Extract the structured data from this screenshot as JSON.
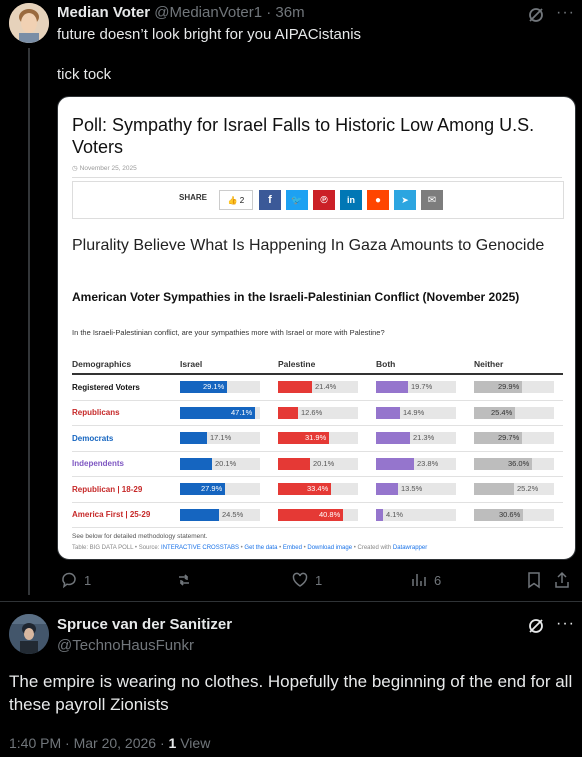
{
  "tweet1": {
    "author_name": "Median Voter",
    "handle": "@MedianVoter1",
    "time": "36m",
    "separator": "·",
    "text_line1": "future doesn’t look bright for you AIPACistanis",
    "text_line2": "tick tock",
    "replies": "1",
    "likes": "1",
    "views": "6"
  },
  "card": {
    "headline": "Poll: Sympathy for Israel Falls to Historic Low Among U.S. Voters",
    "date": "November 25, 2025",
    "share_label": "SHARE",
    "like_count": "2",
    "subheadline": "Plurality Believe What Is Happening In Gaza Amounts to Genocide",
    "chart_title": "American Voter Sympathies in the Israeli-Palestinian Conflict (November 2025)",
    "chart_question": "In the Israeli-Palestinian conflict, are your sympathies more with Israel or more with Palestine?",
    "methodology": "See below for detailed methodology statement.",
    "source_table": "Table: BIG DATA POLL",
    "source_sep": "• Source:",
    "source_link": "INTERACTIVE CROSSTABS",
    "get_data": "Get the data",
    "embed": "Embed",
    "download": "Download image",
    "created_with": "• Created with",
    "datawrapper": "Datawrapper",
    "share_colors": {
      "facebook": "#3b5998",
      "twitter": "#1da1f2",
      "pinterest": "#cb2027",
      "linkedin": "#0077b5",
      "reddit": "#ff4500",
      "telegram": "#2ca5e0",
      "email": "#7d7d7d"
    }
  },
  "chart_data": {
    "type": "table",
    "columns": [
      "Demographics",
      "Israel",
      "Palestine",
      "Both",
      "Neither"
    ],
    "series_colors": [
      "#1565c0",
      "#e53935",
      "#9575cd",
      "#bdbdbd"
    ],
    "rows": [
      {
        "label": "Registered Voters",
        "color": "#111111",
        "values": [
          29.1,
          21.4,
          19.7,
          29.9
        ],
        "labels": [
          "29.1%",
          "21.4%",
          "19.7%",
          "29.9%"
        ]
      },
      {
        "label": "Republicans",
        "color": "#c62828",
        "values": [
          47.1,
          12.6,
          14.9,
          25.4
        ],
        "labels": [
          "47.1%",
          "12.6%",
          "14.9%",
          "25.4%"
        ]
      },
      {
        "label": "Democrats",
        "color": "#1565c0",
        "values": [
          17.1,
          31.9,
          21.3,
          29.7
        ],
        "labels": [
          "17.1%",
          "31.9%",
          "21.3%",
          "29.7%"
        ]
      },
      {
        "label": "Independents",
        "color": "#7e57c2",
        "values": [
          20.1,
          20.1,
          23.8,
          36.0
        ],
        "labels": [
          "20.1%",
          "20.1%",
          "23.8%",
          "36.0%"
        ]
      },
      {
        "label": "Republican | 18-29",
        "color": "#c62828",
        "values": [
          27.9,
          33.4,
          13.5,
          25.2
        ],
        "labels": [
          "27.9%",
          "33.4%",
          "13.5%",
          "25.2%"
        ]
      },
      {
        "label": "America First | 25-29",
        "color": "#c62828",
        "values": [
          24.5,
          40.8,
          4.1,
          30.6
        ],
        "labels": [
          "24.5%",
          "40.8%",
          "4.1%",
          "30.6%"
        ]
      }
    ]
  },
  "tweet2": {
    "author_name": "Spruce van der Sanitizer",
    "handle": "@TechnoHausFunkr",
    "text": "The empire is wearing no clothes. Hopefully the beginning of the end for all these payroll Zionists",
    "timestamp": "1:40 PM · Mar 20, 2026 ·",
    "view_count": "1",
    "view_label": "View"
  }
}
